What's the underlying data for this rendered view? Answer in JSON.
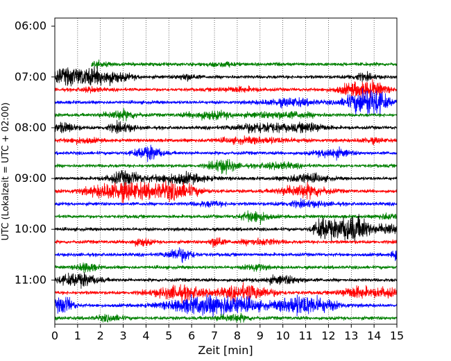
{
  "chart_data": {
    "type": "line",
    "title": "",
    "xlabel": "Zeit  [min]",
    "ylabel": "UTC (Lokalzeit = UTC + 02:00)",
    "xlim": [
      0,
      15
    ],
    "x_ticks": [
      "0",
      "1",
      "2",
      "3",
      "4",
      "5",
      "6",
      "7",
      "8",
      "9",
      "10",
      "11",
      "12",
      "13",
      "14",
      "15"
    ],
    "y_ticks": [
      "06:00",
      "07:00",
      "08:00",
      "09:00",
      "10:00",
      "11:00"
    ],
    "ylim_hours": [
      5.84,
      11.87
    ],
    "vertical_grid": "dotted",
    "colors": [
      "#008000",
      "#000000",
      "#ff0000",
      "#0000ff"
    ],
    "series": [
      {
        "offset_hours": 6.75,
        "color": "#008000",
        "start_min": 1.6,
        "bursts": [
          [
            1.7,
            0.4,
            0.35
          ],
          [
            7.3,
            0.4,
            0.25
          ]
        ]
      },
      {
        "offset_hours": 7.0,
        "color": "#000000",
        "start_min": 0,
        "bursts": [
          [
            0.5,
            0.7,
            0.9
          ],
          [
            2.0,
            0.8,
            1.0
          ],
          [
            5.8,
            0.3,
            0.4
          ],
          [
            13.5,
            0.4,
            0.4
          ]
        ]
      },
      {
        "offset_hours": 7.25,
        "color": "#ff0000",
        "start_min": 0,
        "bursts": [
          [
            1.6,
            0.3,
            0.3
          ],
          [
            8.0,
            0.6,
            0.3
          ],
          [
            13.3,
            0.6,
            0.9
          ],
          [
            14.0,
            0.4,
            0.6
          ]
        ]
      },
      {
        "offset_hours": 7.5,
        "color": "#0000ff",
        "start_min": 0,
        "bursts": [
          [
            10.3,
            0.8,
            0.5
          ],
          [
            13.6,
            0.6,
            1.6
          ],
          [
            14.1,
            0.4,
            0.7
          ]
        ]
      },
      {
        "offset_hours": 7.75,
        "color": "#008000",
        "start_min": 0,
        "bursts": [
          [
            2.9,
            0.5,
            0.6
          ],
          [
            6.8,
            0.7,
            0.5
          ],
          [
            10.0,
            1.0,
            0.4
          ]
        ]
      },
      {
        "offset_hours": 8.0,
        "color": "#000000",
        "start_min": 0,
        "bursts": [
          [
            0.4,
            0.4,
            0.6
          ],
          [
            2.9,
            0.4,
            0.6
          ],
          [
            9.1,
            0.8,
            0.7
          ],
          [
            11.2,
            0.5,
            0.6
          ]
        ]
      },
      {
        "offset_hours": 8.25,
        "color": "#ff0000",
        "start_min": 0,
        "bursts": [
          [
            1.2,
            0.5,
            0.3
          ],
          [
            8.8,
            1.2,
            0.35
          ],
          [
            13.9,
            0.4,
            0.3
          ]
        ]
      },
      {
        "offset_hours": 8.5,
        "color": "#0000ff",
        "start_min": 0,
        "bursts": [
          [
            4.1,
            0.4,
            0.9
          ],
          [
            12.2,
            0.5,
            0.6
          ]
        ]
      },
      {
        "offset_hours": 8.75,
        "color": "#008000",
        "start_min": 0,
        "bursts": [
          [
            7.4,
            0.4,
            0.9
          ],
          [
            9.8,
            0.6,
            0.4
          ]
        ]
      },
      {
        "offset_hours": 9.0,
        "color": "#000000",
        "start_min": 0,
        "bursts": [
          [
            3.1,
            0.5,
            0.9
          ],
          [
            5.5,
            0.8,
            0.7
          ],
          [
            11.0,
            0.6,
            0.6
          ]
        ]
      },
      {
        "offset_hours": 9.25,
        "color": "#ff0000",
        "start_min": 0,
        "bursts": [
          [
            3.0,
            1.0,
            1.3
          ],
          [
            5.3,
            0.7,
            1.1
          ],
          [
            10.9,
            0.7,
            0.9
          ]
        ]
      },
      {
        "offset_hours": 9.5,
        "color": "#0000ff",
        "start_min": 0,
        "bursts": [
          [
            6.8,
            0.5,
            0.3
          ],
          [
            11.0,
            0.7,
            0.35
          ]
        ]
      },
      {
        "offset_hours": 9.75,
        "color": "#008000",
        "start_min": 0,
        "bursts": [
          [
            8.8,
            0.4,
            0.8
          ],
          [
            14.6,
            0.3,
            0.4
          ]
        ]
      },
      {
        "offset_hours": 10.0,
        "color": "#000000",
        "start_min": 0,
        "bursts": [
          [
            11.8,
            0.3,
            1.6
          ],
          [
            12.8,
            0.4,
            1.6
          ],
          [
            13.5,
            0.3,
            1.2
          ],
          [
            14.6,
            0.3,
            0.9
          ]
        ]
      },
      {
        "offset_hours": 10.25,
        "color": "#ff0000",
        "start_min": 0,
        "bursts": [
          [
            3.8,
            0.3,
            0.5
          ],
          [
            7.1,
            0.2,
            0.8
          ],
          [
            9.0,
            0.6,
            0.4
          ]
        ]
      },
      {
        "offset_hours": 10.5,
        "color": "#0000ff",
        "start_min": 0,
        "bursts": [
          [
            5.5,
            0.4,
            0.9
          ],
          [
            14.9,
            0.1,
            0.7
          ]
        ]
      },
      {
        "offset_hours": 10.75,
        "color": "#008000",
        "start_min": 0,
        "bursts": [
          [
            1.4,
            0.3,
            0.6
          ],
          [
            8.8,
            0.3,
            0.5
          ]
        ]
      },
      {
        "offset_hours": 11.0,
        "color": "#000000",
        "start_min": 0,
        "bursts": [
          [
            1.0,
            0.6,
            0.9
          ],
          [
            10.0,
            0.6,
            0.5
          ]
        ]
      },
      {
        "offset_hours": 11.25,
        "color": "#ff0000",
        "start_min": 0,
        "bursts": [
          [
            5.5,
            0.8,
            0.9
          ],
          [
            8.4,
            0.8,
            1.0
          ],
          [
            13.2,
            0.5,
            0.8
          ],
          [
            14.5,
            0.4,
            0.6
          ]
        ]
      },
      {
        "offset_hours": 11.5,
        "color": "#0000ff",
        "start_min": 0,
        "bursts": [
          [
            0.4,
            0.3,
            1.2
          ],
          [
            6.3,
            1.0,
            1.1
          ],
          [
            8.0,
            0.8,
            1.0
          ],
          [
            10.4,
            0.5,
            0.9
          ],
          [
            11.4,
            0.7,
            1.0
          ]
        ]
      },
      {
        "offset_hours": 11.75,
        "color": "#008000",
        "start_min": 0,
        "bursts": [
          [
            2.4,
            0.4,
            0.4
          ],
          [
            7.8,
            0.5,
            0.5
          ]
        ]
      }
    ]
  }
}
